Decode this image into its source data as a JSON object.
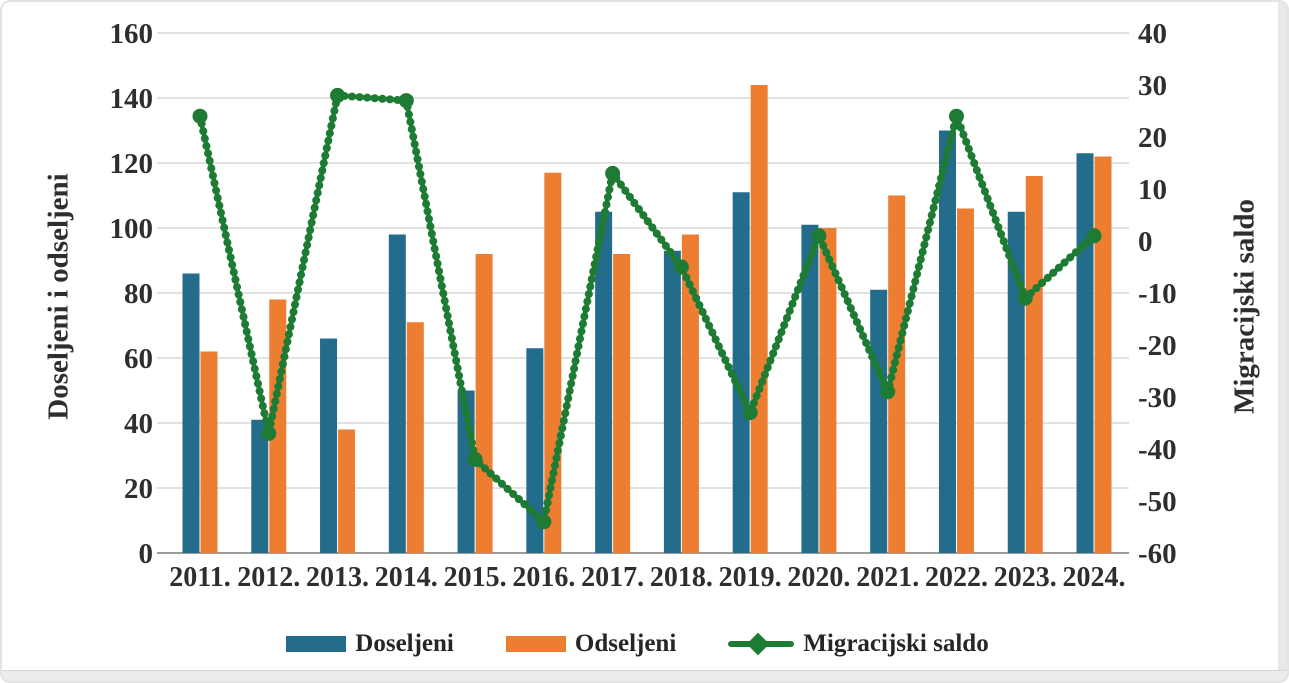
{
  "chart_data": {
    "type": "bar",
    "subtype": "grouped-bars-with-line-combo",
    "categories": [
      "2011.",
      "2012.",
      "2013.",
      "2014.",
      "2015.",
      "2016.",
      "2017.",
      "2018.",
      "2019.",
      "2020.",
      "2021.",
      "2022.",
      "2023.",
      "2024."
    ],
    "series": [
      {
        "name": "Doseljeni",
        "type": "bar",
        "axis": "left",
        "color": "#236C8C",
        "values": [
          86,
          41,
          66,
          98,
          50,
          63,
          105,
          93,
          111,
          101,
          81,
          130,
          105,
          123
        ]
      },
      {
        "name": "Odseljeni",
        "type": "bar",
        "axis": "left",
        "color": "#ED7D31",
        "values": [
          62,
          78,
          38,
          71,
          92,
          117,
          92,
          98,
          144,
          100,
          110,
          106,
          116,
          122
        ]
      },
      {
        "name": "Migracijski saldo",
        "type": "line",
        "axis": "right",
        "color": "#1E7B33",
        "values": [
          24,
          -37,
          28,
          27,
          -42,
          -54,
          13,
          -5,
          -33,
          1,
          -29,
          24,
          -11,
          1
        ]
      }
    ],
    "left_axis": {
      "label": "Doseljeni i odseljeni",
      "min": 0,
      "max": 160,
      "ticks": [
        0,
        20,
        40,
        60,
        80,
        100,
        120,
        140,
        160
      ]
    },
    "right_axis": {
      "label": "Migracijski saldo",
      "min": -60,
      "max": 40,
      "ticks": [
        -60,
        -50,
        -40,
        -30,
        -20,
        -10,
        0,
        10,
        20,
        30,
        40
      ]
    },
    "grid": "horizontal-on",
    "legend_position": "bottom",
    "title": "",
    "xlabel": ""
  },
  "colors": {
    "doseljeni_blue": "#236C8C",
    "odseljeni_orange": "#ED7D31",
    "saldo_green": "#1E7B33",
    "gridline": "#D9D9D9",
    "axis_line": "#9C9C9C",
    "text": "#2E2E2E"
  }
}
